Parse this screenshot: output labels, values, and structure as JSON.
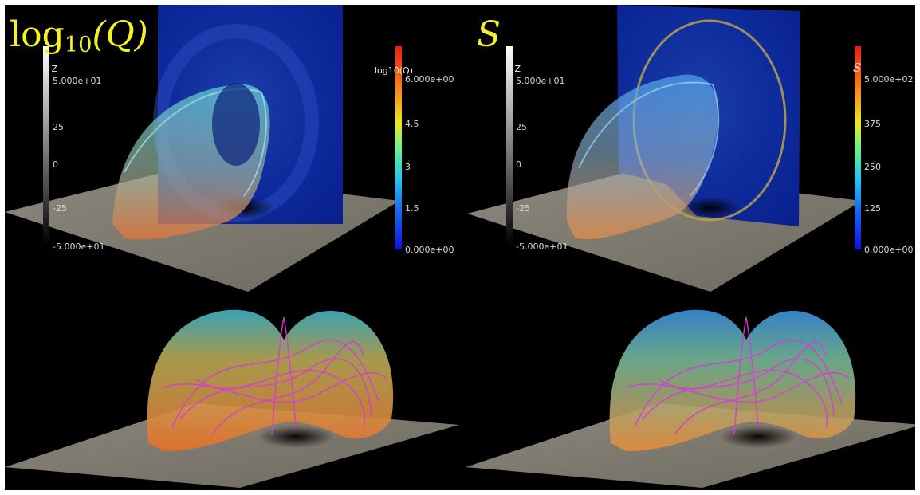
{
  "panels": {
    "q": {
      "title_main": "log",
      "title_sub": "10",
      "title_arg": "(Q)",
      "bz_bar": {
        "title": "b Z",
        "ticks": [
          "5.000e+01",
          "25",
          "0",
          "-25",
          "-5.000e+01"
        ]
      },
      "value_bar": {
        "title": "log10(Q)",
        "ticks": [
          "6.000e+00",
          "4.5",
          "3",
          "1.5",
          "0.000e+00"
        ]
      }
    },
    "s": {
      "title": "S",
      "bz_bar": {
        "title": "b Z",
        "ticks": [
          "5.000e+01",
          "25",
          "0",
          "-25",
          "-5.000e+01"
        ]
      },
      "value_bar": {
        "title": "S",
        "ticks": [
          "5.000e+02",
          "375",
          "250",
          "125",
          "0.000e+00"
        ]
      }
    }
  },
  "colors": {
    "title": "#f2f224",
    "frame_background": "#000000"
  }
}
